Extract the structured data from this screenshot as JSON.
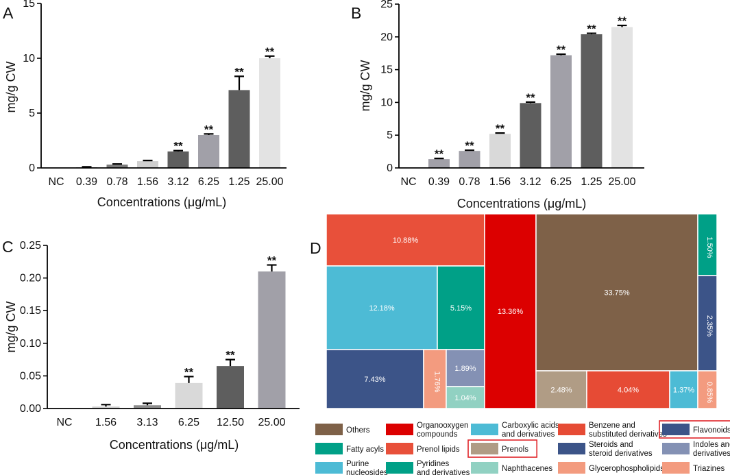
{
  "chart_data": [
    {
      "panel": "A",
      "type": "bar",
      "categories": [
        "NC",
        "0.39",
        "0.78",
        "1.56",
        "3.12",
        "6.25",
        "1.25",
        "25.00"
      ],
      "values": [
        0,
        0.05,
        0.3,
        0.62,
        1.5,
        3.0,
        7.1,
        10.0
      ],
      "errors": [
        0,
        0.05,
        0.06,
        0.06,
        0.08,
        0.1,
        1.25,
        0.2
      ],
      "significance": [
        "",
        "",
        "",
        "",
        "**",
        "**",
        "**",
        "**"
      ],
      "colors": [
        "#c8c8c8",
        "#8c8c8c",
        "#7a7a7a",
        "#cfcfcf",
        "#5e5e5e",
        "#a1a0a8",
        "#5e5e5e",
        "#e3e3e3"
      ],
      "ylabel": "mg/g CW",
      "xlabel": "Concentrations (μg/mL)",
      "ylim": [
        0,
        15
      ],
      "yticks": [
        "0",
        "5",
        "10",
        "15"
      ]
    },
    {
      "panel": "B",
      "type": "bar",
      "categories": [
        "NC",
        "0.39",
        "0.78",
        "1.56",
        "3.12",
        "6.25",
        "1.25",
        "25.00"
      ],
      "values": [
        0,
        1.35,
        2.6,
        5.2,
        9.9,
        17.2,
        20.4,
        21.5
      ],
      "errors": [
        0,
        0.1,
        0.1,
        0.12,
        0.15,
        0.15,
        0.15,
        0.25
      ],
      "significance": [
        "",
        "**",
        "**",
        "**",
        "**",
        "**",
        "**",
        "**"
      ],
      "colors": [
        "#c8c8c8",
        "#a1a0a8",
        "#a1a0a8",
        "#d9d9d9",
        "#5e5e5e",
        "#a1a0a8",
        "#5e5e5e",
        "#e3e3e3"
      ],
      "ylabel": "mg/g CW",
      "xlabel": "Concentrations (μg/mL)",
      "ylim": [
        0,
        25
      ],
      "yticks": [
        "0",
        "5",
        "10",
        "15",
        "20",
        "25"
      ]
    },
    {
      "panel": "C",
      "type": "bar",
      "categories": [
        "NC",
        "1.56",
        "3.13",
        "6.25",
        "12.50",
        "25.00"
      ],
      "values": [
        0,
        0.003,
        0.005,
        0.039,
        0.065,
        0.21
      ],
      "errors": [
        0,
        0.003,
        0.003,
        0.01,
        0.01,
        0.01
      ],
      "significance": [
        "",
        "",
        "",
        "**",
        "**",
        "**"
      ],
      "colors": [
        "#c8c8c8",
        "#cfcfcf",
        "#8c8c8c",
        "#d9d9d9",
        "#5e5e5e",
        "#a1a0a8"
      ],
      "ylabel": "mg/g CW",
      "xlabel": "Concentrations (μg/mL)",
      "ylim": [
        0,
        0.25
      ],
      "yticks": [
        "0.00",
        "0.05",
        "0.10",
        "0.15",
        "0.20",
        "0.25"
      ]
    },
    {
      "panel": "D",
      "type": "treemap",
      "cells": [
        {
          "category": "Prenol lipids",
          "value": 10.88,
          "label": "10.88%",
          "color": "#e8503a"
        },
        {
          "category": "Carboxylic acids and derivatives",
          "value": 12.18,
          "label": "12.18%",
          "color": "#4dbbd5"
        },
        {
          "category": "Pyridines and derivatives",
          "value": 5.15,
          "label": "5.15%",
          "color": "#00a087"
        },
        {
          "category": "Steroids and steroid derivatives",
          "value": 7.43,
          "label": "7.43%",
          "color": "#3c5488"
        },
        {
          "category": "Glycerophospholipids",
          "value": 1.76,
          "label": "1.76%",
          "color": "#f39b7f"
        },
        {
          "category": "Indoles and derivatives",
          "value": 1.89,
          "label": "1.89%",
          "color": "#8491b4"
        },
        {
          "category": "Naphthacenes",
          "value": 1.04,
          "label": "1.04%",
          "color": "#91d1c2"
        },
        {
          "category": "Organooxygen compounds",
          "value": 13.36,
          "label": "13.36%",
          "color": "#dc0000"
        },
        {
          "category": "Others",
          "value": 33.75,
          "label": "33.75%",
          "color": "#7e6148"
        },
        {
          "category": "Fatty acyls",
          "value": 1.5,
          "label": "1.50%",
          "color": "#00a087"
        },
        {
          "category": "Flavonoids",
          "value": 2.35,
          "label": "2.35%",
          "color": "#3c5488"
        },
        {
          "category": "Prenols",
          "value": 2.48,
          "label": "2.48%",
          "color": "#b09c85"
        },
        {
          "category": "Benzene and substituted derivatives",
          "value": 4.04,
          "label": "4.04%",
          "color": "#e64b35"
        },
        {
          "category": "Purine nucleosides",
          "value": 1.37,
          "label": "1.37%",
          "color": "#4dbbd5"
        },
        {
          "category": "Triazines",
          "value": 0.85,
          "label": "0.85%",
          "color": "#f39b7f"
        }
      ],
      "legend": [
        {
          "lines": [
            "Others"
          ],
          "color": "#7e6148",
          "highlight": false
        },
        {
          "lines": [
            "Organooxygen",
            "compounds"
          ],
          "color": "#dc0000",
          "highlight": false
        },
        {
          "lines": [
            "Carboxylic acids",
            "and derivatives"
          ],
          "color": "#4dbbd5",
          "highlight": false
        },
        {
          "lines": [
            "Benzene and",
            "substituted derivatives"
          ],
          "color": "#e64b35",
          "highlight": false
        },
        {
          "lines": [
            "Flavonoids"
          ],
          "color": "#3c5488",
          "highlight": true
        },
        {
          "lines": [
            "Fatty acyls"
          ],
          "color": "#00a087",
          "highlight": false
        },
        {
          "lines": [
            "Prenol lipids"
          ],
          "color": "#e8503a",
          "highlight": false
        },
        {
          "lines": [
            "Prenols"
          ],
          "color": "#b09c85",
          "highlight": true
        },
        {
          "lines": [
            "Steroids and",
            "steroid derivatives"
          ],
          "color": "#3c5488",
          "highlight": false
        },
        {
          "lines": [
            "Indoles and",
            "derivatives"
          ],
          "color": "#8491b4",
          "highlight": false
        },
        {
          "lines": [
            "Purine",
            "nucleosides"
          ],
          "color": "#4dbbd5",
          "highlight": false
        },
        {
          "lines": [
            "Pyridines",
            "and derivatives"
          ],
          "color": "#00a087",
          "highlight": false
        },
        {
          "lines": [
            "Naphthacenes"
          ],
          "color": "#91d1c2",
          "highlight": false
        },
        {
          "lines": [
            "Glycerophospholipids"
          ],
          "color": "#f39b7f",
          "highlight": false
        },
        {
          "lines": [
            "Triazines"
          ],
          "color": "#f39b7f",
          "highlight": false
        }
      ]
    }
  ]
}
